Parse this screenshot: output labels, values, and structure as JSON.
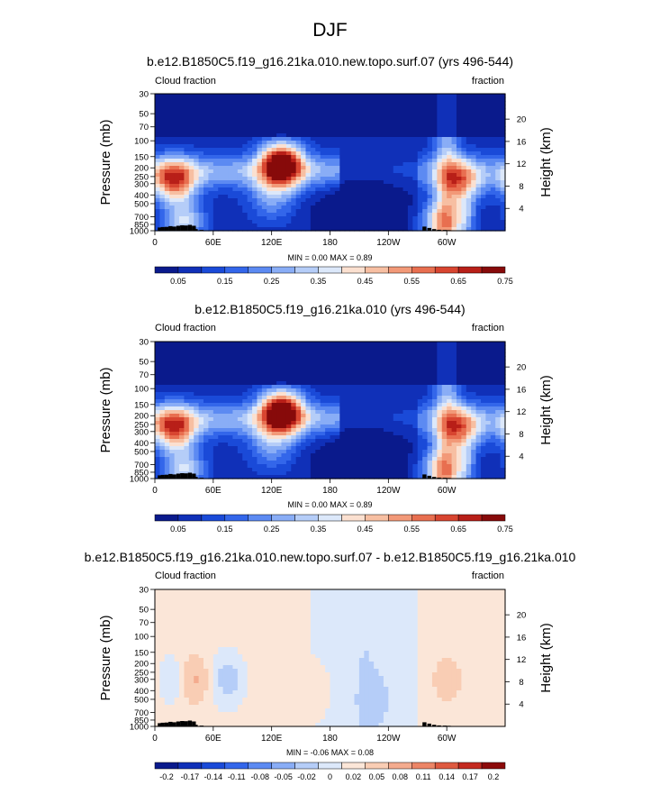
{
  "figure": {
    "title": "DJF"
  },
  "colors": {
    "abs_palette": [
      "#0a1a8c",
      "#1030b8",
      "#1a4ad8",
      "#3366ea",
      "#5c8af2",
      "#89adf6",
      "#b5cdf8",
      "#dce8fa",
      "#fbe0d0",
      "#f7bfa2",
      "#f29978",
      "#e86f50",
      "#d84530",
      "#b81f18",
      "#870a0a"
    ],
    "diff_palette": [
      "#0a1a8c",
      "#1030b8",
      "#1a4ad8",
      "#3366ea",
      "#5c8af2",
      "#89adf6",
      "#b5cdf8",
      "#dce8fa",
      "#fbe6d8",
      "#f9cdb4",
      "#f4ab8e",
      "#ec8566",
      "#de5a40",
      "#c42a20",
      "#8c0a0a"
    ],
    "topography": "#000000"
  },
  "panels": [
    {
      "title": "b.e12.B1850C5.f19_g16.21ka.010.new.topo.surf.07 (yrs 496-544)",
      "left_label": "Cloud fraction",
      "right_label": "fraction",
      "minmax": "MIN =   0.00  MAX =   0.89",
      "colorbar_labels": [
        "0.05",
        "0.15",
        "0.25",
        "0.35",
        "0.45",
        "0.55",
        "0.65",
        "0.75"
      ]
    },
    {
      "title": "b.e12.B1850C5.f19_g16.21ka.010 (yrs 496-544)",
      "left_label": "Cloud fraction",
      "right_label": "fraction",
      "minmax": "MIN =   0.00  MAX =   0.89",
      "colorbar_labels": [
        "0.05",
        "0.15",
        "0.25",
        "0.35",
        "0.45",
        "0.55",
        "0.65",
        "0.75"
      ]
    },
    {
      "title": "b.e12.B1850C5.f19_g16.21ka.010.new.topo.surf.07 - b.e12.B1850C5.f19_g16.21ka.010",
      "left_label": "Cloud fraction",
      "right_label": "fraction",
      "minmax": "MIN =  -0.06  MAX =   0.08",
      "colorbar_labels": [
        "-0.2",
        "-0.17",
        "-0.14",
        "-0.11",
        "-0.08",
        "-0.05",
        "-0.02",
        "0",
        "0.02",
        "0.05",
        "0.08",
        "0.11",
        "0.14",
        "0.17",
        "0.2"
      ]
    }
  ],
  "axes": {
    "ylabel_left": "Pressure (mb)",
    "ylabel_right": "Height (km)",
    "pressure_ticks": [
      "1000",
      "850",
      "700",
      "500",
      "400",
      "300",
      "250",
      "200",
      "150",
      "100",
      "70",
      "50",
      "30"
    ],
    "height_ticks": [
      "4",
      "8",
      "12",
      "16",
      "20"
    ],
    "lon_ticks": [
      "0",
      "60E",
      "120E",
      "180",
      "120W",
      "60W"
    ]
  },
  "chart_data": [
    {
      "type": "heatmap",
      "title": "b.e12.B1850C5.f19_g16.21ka.010.new.topo.surf.07 (yrs 496-544)",
      "variable": "Cloud fraction",
      "units": "fraction",
      "x": "longitude 0-360",
      "y": "pressure (mb), log scale",
      "ylim": [
        1000,
        30
      ],
      "min": 0.0,
      "max": 0.89,
      "levels": [
        0.05,
        0.1,
        0.15,
        0.2,
        0.25,
        0.3,
        0.35,
        0.4,
        0.45,
        0.5,
        0.55,
        0.6,
        0.65,
        0.7,
        0.75
      ],
      "features": [
        {
          "lon": 130,
          "pressure": 180,
          "value": 0.85
        },
        {
          "lon": 20,
          "pressure": 280,
          "value": 0.6
        },
        {
          "lon": 315,
          "pressure": 280,
          "value": 0.5
        },
        {
          "lon": 30,
          "pressure": 800,
          "value": 0.4
        },
        {
          "lon": 295,
          "pressure": 800,
          "value": 0.45
        },
        {
          "lon": 210,
          "pressure": 600,
          "value": 0.02
        }
      ]
    },
    {
      "type": "heatmap",
      "title": "b.e12.B1850C5.f19_g16.21ka.010 (yrs 496-544)",
      "variable": "Cloud fraction",
      "units": "fraction",
      "x": "longitude 0-360",
      "y": "pressure (mb), log scale",
      "ylim": [
        1000,
        30
      ],
      "min": 0.0,
      "max": 0.89,
      "levels": [
        0.05,
        0.1,
        0.15,
        0.2,
        0.25,
        0.3,
        0.35,
        0.4,
        0.45,
        0.5,
        0.55,
        0.6,
        0.65,
        0.7,
        0.75
      ],
      "features": [
        {
          "lon": 130,
          "pressure": 180,
          "value": 0.85
        },
        {
          "lon": 20,
          "pressure": 280,
          "value": 0.6
        },
        {
          "lon": 315,
          "pressure": 280,
          "value": 0.5
        },
        {
          "lon": 30,
          "pressure": 800,
          "value": 0.4
        },
        {
          "lon": 295,
          "pressure": 800,
          "value": 0.45
        },
        {
          "lon": 210,
          "pressure": 600,
          "value": 0.02
        }
      ]
    },
    {
      "type": "heatmap",
      "title": "b.e12.B1850C5.f19_g16.21ka.010.new.topo.surf.07 - b.e12.B1850C5.f19_g16.21ka.010",
      "variable": "Cloud fraction",
      "units": "fraction",
      "x": "longitude 0-360",
      "y": "pressure (mb), log scale",
      "ylim": [
        1000,
        30
      ],
      "min": -0.06,
      "max": 0.08,
      "levels": [
        -0.2,
        -0.17,
        -0.14,
        -0.11,
        -0.08,
        -0.05,
        -0.02,
        0,
        0.02,
        0.05,
        0.08,
        0.11,
        0.14,
        0.17,
        0.2
      ],
      "features": [
        {
          "lon": 40,
          "pressure": 300,
          "value": 0.05
        },
        {
          "lon": 75,
          "pressure": 300,
          "value": -0.04
        },
        {
          "lon": 20,
          "pressure": 300,
          "value": -0.02
        },
        {
          "lon": 300,
          "pressure": 300,
          "value": 0.04
        },
        {
          "lon": 170,
          "pressure": 400,
          "value": 0.02
        },
        {
          "lon": 230,
          "pressure": 500,
          "value": -0.01
        }
      ]
    }
  ]
}
